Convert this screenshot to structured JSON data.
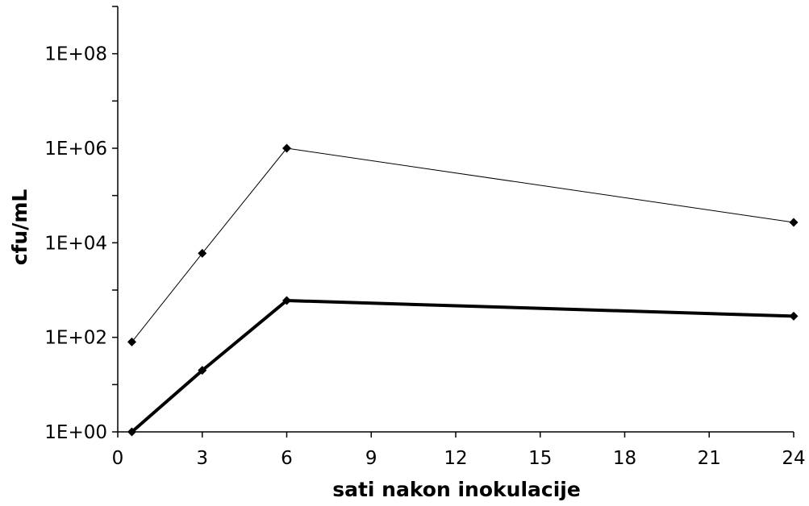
{
  "chart_data": {
    "type": "line",
    "title": "",
    "xlabel": "sati nakon inokulacije",
    "ylabel": "cfu/mL",
    "xlim": [
      0,
      24
    ],
    "ylim": [
      1,
      1000000000
    ],
    "yscale": "log",
    "grid": false,
    "legend": "none",
    "x_ticks": [
      0,
      3,
      6,
      9,
      12,
      15,
      18,
      21,
      24
    ],
    "x_tick_labels": [
      "0",
      "3",
      "6",
      "9",
      "12",
      "15",
      "18",
      "21",
      "24"
    ],
    "y_ticks": [
      1,
      100,
      10000,
      1000000,
      100000000
    ],
    "y_tick_labels": [
      "1E+00",
      "1E+02",
      "1E+04",
      "1E+06",
      "1E+08"
    ],
    "series": [
      {
        "x": [
          0.5,
          3,
          6,
          24
        ],
        "values": [
          80,
          6000,
          1000000,
          27000
        ],
        "color": "#000000",
        "line_style": "thin",
        "marker": "diamond"
      },
      {
        "x": [
          0.5,
          3,
          6,
          24
        ],
        "values": [
          1,
          20,
          600,
          280
        ],
        "color": "#000000",
        "line_style": "thick",
        "marker": "diamond"
      }
    ]
  }
}
